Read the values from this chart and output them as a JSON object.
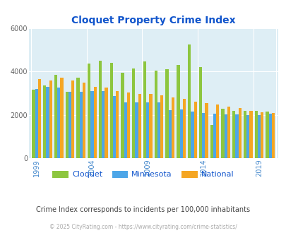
{
  "title": "Cloquet Property Crime Index",
  "subtitle": "Crime Index corresponds to incidents per 100,000 inhabitants",
  "footer": "© 2025 CityRating.com - https://www.cityrating.com/crime-statistics/",
  "years": [
    1999,
    2000,
    2001,
    2002,
    2003,
    2004,
    2005,
    2006,
    2007,
    2008,
    2009,
    2010,
    2011,
    2012,
    2013,
    2014,
    2015,
    2016,
    2017,
    2018,
    2019,
    2020
  ],
  "cloquet": [
    3150,
    3350,
    3850,
    3050,
    3700,
    4350,
    4500,
    4400,
    3950,
    4150,
    4450,
    4050,
    4100,
    4300,
    5250,
    4200,
    1550,
    2300,
    2200,
    2200,
    2200,
    2150
  ],
  "minnesota": [
    3200,
    3300,
    3250,
    3050,
    3050,
    3100,
    3100,
    2870,
    2580,
    2580,
    2570,
    2570,
    2230,
    2250,
    2170,
    2100,
    2050,
    2030,
    2020,
    2000,
    1980,
    2050
  ],
  "national": [
    3650,
    3600,
    3700,
    3600,
    3500,
    3300,
    3250,
    3100,
    3020,
    2980,
    2980,
    2900,
    2820,
    2730,
    2600,
    2530,
    2480,
    2380,
    2320,
    2200,
    2130,
    2100
  ],
  "ylim": [
    0,
    6000
  ],
  "yticks": [
    0,
    2000,
    4000,
    6000
  ],
  "xtick_labels": [
    "1999",
    "2004",
    "2009",
    "2014",
    "2019"
  ],
  "xtick_positions": [
    0,
    5,
    10,
    15,
    20
  ],
  "bar_width": 0.27,
  "colors": {
    "cloquet": "#8dc63f",
    "minnesota": "#4da6e8",
    "national": "#f5a623"
  },
  "bg_color": "#deeef5",
  "title_color": "#1155cc",
  "subtitle_color": "#444444",
  "footer_color": "#aaaaaa",
  "grid_color": "#ffffff",
  "legend_labels": [
    "Cloquet",
    "Minnesota",
    "National"
  ],
  "legend_colors": [
    "#8dc63f",
    "#4da6e8",
    "#f5a623"
  ]
}
